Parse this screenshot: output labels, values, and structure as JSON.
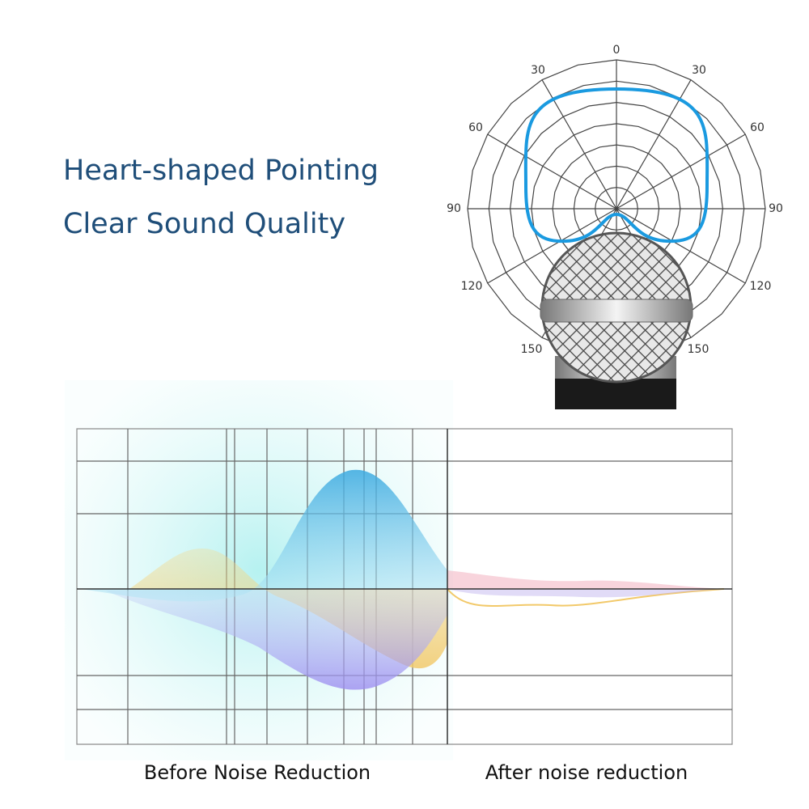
{
  "headline": {
    "line1": "Heart-shaped Pointing",
    "line2": "Clear Sound Quality"
  },
  "polar": {
    "angle_labels": [
      "0",
      "30",
      "30",
      "60",
      "60",
      "90",
      "90",
      "120",
      "120",
      "150",
      "150"
    ]
  },
  "comparison": {
    "before_label": "Before Noise Reduction",
    "after_label": "After noise reduction"
  }
}
